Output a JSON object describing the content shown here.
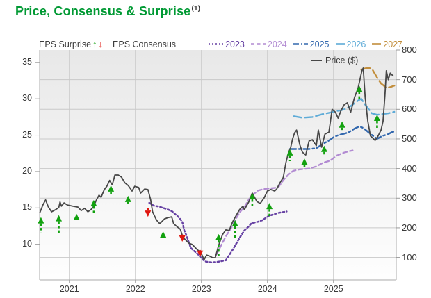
{
  "title": {
    "text": "Price, Consensus & Surprise",
    "superscript": "(1)"
  },
  "colors": {
    "title_green": "#009933",
    "text": "#3a3a3a",
    "up_arrow": "#12A10F",
    "down_arrow": "#E0160F",
    "grid": "#c9c9c9",
    "spine": "#ababab",
    "plot_bg_top": "#e8e8e8",
    "plot_bg_bottom": "#fefefe"
  },
  "legend": {
    "surprise_label": "EPS Surprise",
    "up_glyph": "↑",
    "down_glyph": "↓",
    "consensus_label": "EPS Consensus",
    "price_label": "Price ($)",
    "price_swatch_color": "#474747"
  },
  "chart_data": {
    "type": "line",
    "title": "Price, Consensus & Surprise",
    "x_axis": {
      "domain": [
        2020.55,
        2025.95
      ],
      "ticks": [
        "2021",
        "2022",
        "2023",
        "2024",
        "2025"
      ],
      "tick_values": [
        2021,
        2022,
        2023,
        2024,
        2025
      ]
    },
    "left_axis": {
      "name": "EPS Consensus scale",
      "domain": [
        5.1,
        36.7
      ],
      "ticks": [
        35,
        30,
        25,
        20,
        15,
        10
      ]
    },
    "right_axis": {
      "name": "Price ($) scale",
      "domain": [
        24,
        800
      ],
      "ticks": [
        800,
        700,
        600,
        500,
        400,
        300,
        200,
        100
      ]
    },
    "grid": true,
    "price_series": {
      "name": "Price ($)",
      "color": "#474747",
      "axis": "right",
      "points": [
        [
          2020.55,
          249
        ],
        [
          2020.6,
          277
        ],
        [
          2020.64,
          294
        ],
        [
          2020.68,
          271
        ],
        [
          2020.73,
          254
        ],
        [
          2020.79,
          261
        ],
        [
          2020.84,
          268
        ],
        [
          2020.86,
          287
        ],
        [
          2020.88,
          273
        ],
        [
          2020.92,
          284
        ],
        [
          2020.97,
          277
        ],
        [
          2021.05,
          273
        ],
        [
          2021.13,
          270
        ],
        [
          2021.18,
          258
        ],
        [
          2021.23,
          266
        ],
        [
          2021.28,
          254
        ],
        [
          2021.33,
          262
        ],
        [
          2021.37,
          273
        ],
        [
          2021.41,
          294
        ],
        [
          2021.45,
          310
        ],
        [
          2021.48,
          303
        ],
        [
          2021.53,
          329
        ],
        [
          2021.57,
          341
        ],
        [
          2021.61,
          360
        ],
        [
          2021.65,
          345
        ],
        [
          2021.69,
          378
        ],
        [
          2021.74,
          378
        ],
        [
          2021.79,
          371
        ],
        [
          2021.84,
          352
        ],
        [
          2021.89,
          343
        ],
        [
          2021.95,
          324
        ],
        [
          2021.99,
          340
        ],
        [
          2022.05,
          336
        ],
        [
          2022.08,
          317
        ],
        [
          2022.14,
          331
        ],
        [
          2022.19,
          329
        ],
        [
          2022.23,
          296
        ],
        [
          2022.26,
          254
        ],
        [
          2022.32,
          226
        ],
        [
          2022.37,
          214
        ],
        [
          2022.44,
          230
        ],
        [
          2022.49,
          234
        ],
        [
          2022.55,
          237
        ],
        [
          2022.58,
          214
        ],
        [
          2022.63,
          204
        ],
        [
          2022.68,
          195
        ],
        [
          2022.72,
          168
        ],
        [
          2022.77,
          157
        ],
        [
          2022.81,
          148
        ],
        [
          2022.86,
          144
        ],
        [
          2022.92,
          130
        ],
        [
          2022.97,
          120
        ],
        [
          2023.01,
          108
        ],
        [
          2023.04,
          92
        ],
        [
          2023.08,
          108
        ],
        [
          2023.13,
          104
        ],
        [
          2023.17,
          99
        ],
        [
          2023.21,
          99
        ],
        [
          2023.26,
          140
        ],
        [
          2023.32,
          177
        ],
        [
          2023.37,
          193
        ],
        [
          2023.42,
          191
        ],
        [
          2023.47,
          219
        ],
        [
          2023.53,
          243
        ],
        [
          2023.58,
          262
        ],
        [
          2023.63,
          273
        ],
        [
          2023.65,
          261
        ],
        [
          2023.72,
          289
        ],
        [
          2023.77,
          317
        ],
        [
          2023.84,
          289
        ],
        [
          2023.89,
          282
        ],
        [
          2023.95,
          301
        ],
        [
          2024.0,
          324
        ],
        [
          2024.05,
          329
        ],
        [
          2024.11,
          324
        ],
        [
          2024.14,
          331
        ],
        [
          2024.19,
          352
        ],
        [
          2024.24,
          370
        ],
        [
          2024.28,
          420
        ],
        [
          2024.32,
          455
        ],
        [
          2024.35,
          470
        ],
        [
          2024.38,
          500
        ],
        [
          2024.41,
          520
        ],
        [
          2024.44,
          530
        ],
        [
          2024.49,
          480
        ],
        [
          2024.53,
          455
        ],
        [
          2024.58,
          446
        ],
        [
          2024.63,
          493
        ],
        [
          2024.68,
          497
        ],
        [
          2024.74,
          477
        ],
        [
          2024.77,
          530
        ],
        [
          2024.82,
          472
        ],
        [
          2024.87,
          516
        ],
        [
          2024.93,
          523
        ],
        [
          2024.98,
          600
        ],
        [
          2025.03,
          590
        ],
        [
          2025.07,
          570
        ],
        [
          2025.11,
          594
        ],
        [
          2025.16,
          615
        ],
        [
          2025.21,
          622
        ],
        [
          2025.26,
          590
        ],
        [
          2025.32,
          641
        ],
        [
          2025.37,
          670
        ],
        [
          2025.4,
          700
        ],
        [
          2025.43,
          730
        ],
        [
          2025.45,
          739
        ],
        [
          2025.48,
          640
        ],
        [
          2025.52,
          560
        ],
        [
          2025.56,
          510
        ],
        [
          2025.6,
          502
        ],
        [
          2025.63,
          495
        ],
        [
          2025.67,
          508
        ],
        [
          2025.72,
          530
        ],
        [
          2025.75,
          560
        ],
        [
          2025.78,
          650
        ],
        [
          2025.8,
          730
        ],
        [
          2025.83,
          700
        ],
        [
          2025.86,
          722
        ],
        [
          2025.91,
          711
        ]
      ]
    },
    "consensus_series": [
      {
        "name": "2023",
        "color": "#6641A3",
        "dash": "2.5 3.2",
        "legend_dash": "2 3",
        "width": 2.5,
        "axis": "left",
        "points": [
          [
            2022.21,
            15.7
          ],
          [
            2022.28,
            15.3
          ],
          [
            2022.35,
            15.2
          ],
          [
            2022.42,
            15.0
          ],
          [
            2022.49,
            14.8
          ],
          [
            2022.56,
            14.5
          ],
          [
            2022.62,
            14.0
          ],
          [
            2022.66,
            13.7
          ],
          [
            2022.71,
            13.1
          ],
          [
            2022.74,
            11.9
          ],
          [
            2022.77,
            11.3
          ],
          [
            2022.84,
            9.5
          ],
          [
            2022.95,
            8.6
          ],
          [
            2023.02,
            7.9
          ],
          [
            2023.07,
            7.6
          ],
          [
            2023.16,
            7.5
          ],
          [
            2023.26,
            7.6
          ],
          [
            2023.37,
            7.8
          ],
          [
            2023.47,
            9.2
          ],
          [
            2023.58,
            10.9
          ],
          [
            2023.65,
            11.9
          ],
          [
            2023.71,
            12.4
          ],
          [
            2023.76,
            12.9
          ],
          [
            2023.86,
            13.1
          ],
          [
            2023.92,
            13.3
          ],
          [
            2024.02,
            13.9
          ],
          [
            2024.09,
            14.1
          ],
          [
            2024.16,
            14.3
          ],
          [
            2024.22,
            14.4
          ],
          [
            2024.29,
            14.5
          ]
        ]
      },
      {
        "name": "2024",
        "color": "#B28BD2",
        "dash": "6 4",
        "legend_dash": "5 3.5",
        "width": 2.3,
        "axis": "left",
        "points": [
          [
            2023.23,
            8.6
          ],
          [
            2023.29,
            9.7
          ],
          [
            2023.37,
            11.1
          ],
          [
            2023.44,
            12.1
          ],
          [
            2023.51,
            13.3
          ],
          [
            2023.58,
            14.4
          ],
          [
            2023.65,
            15.1
          ],
          [
            2023.72,
            16.2
          ],
          [
            2023.79,
            16.9
          ],
          [
            2023.86,
            17.4
          ],
          [
            2023.95,
            17.6
          ],
          [
            2024.05,
            17.7
          ],
          [
            2024.16,
            17.8
          ],
          [
            2024.24,
            18.8
          ],
          [
            2024.32,
            19.6
          ],
          [
            2024.39,
            20.1
          ],
          [
            2024.49,
            20.3
          ],
          [
            2024.63,
            20.4
          ],
          [
            2024.74,
            20.7
          ],
          [
            2024.84,
            21.2
          ],
          [
            2024.95,
            21.5
          ],
          [
            2025.05,
            22.2
          ],
          [
            2025.16,
            22.6
          ],
          [
            2025.24,
            22.8
          ],
          [
            2025.29,
            22.9
          ]
        ]
      },
      {
        "name": "2025",
        "color": "#3368AE",
        "dash": "9 4 2.5 4",
        "legend_dash": "8 3 2 3",
        "width": 2.4,
        "axis": "left",
        "points": [
          [
            2024.34,
            23.1
          ],
          [
            2024.47,
            23.1
          ],
          [
            2024.63,
            23.1
          ],
          [
            2024.74,
            23.2
          ],
          [
            2024.84,
            23.8
          ],
          [
            2024.92,
            24.2
          ],
          [
            2025.0,
            24.7
          ],
          [
            2025.07,
            25.0
          ],
          [
            2025.16,
            25.2
          ],
          [
            2025.23,
            25.4
          ],
          [
            2025.32,
            25.9
          ],
          [
            2025.39,
            26.2
          ],
          [
            2025.45,
            26.0
          ],
          [
            2025.53,
            25.4
          ],
          [
            2025.6,
            24.9
          ],
          [
            2025.66,
            24.5
          ],
          [
            2025.74,
            24.9
          ],
          [
            2025.82,
            25.1
          ],
          [
            2025.88,
            25.4
          ],
          [
            2025.92,
            25.5
          ]
        ]
      },
      {
        "name": "2026",
        "color": "#5EABD7",
        "dash": "11 5",
        "legend_dash": "",
        "width": 2.4,
        "axis": "left",
        "points": [
          [
            2024.4,
            27.6
          ],
          [
            2024.53,
            27.4
          ],
          [
            2024.68,
            27.5
          ],
          [
            2024.84,
            27.9
          ],
          [
            2024.95,
            28.1
          ],
          [
            2025.03,
            28.3
          ],
          [
            2025.11,
            28.4
          ],
          [
            2025.18,
            28.6
          ],
          [
            2025.26,
            29.0
          ],
          [
            2025.32,
            29.4
          ],
          [
            2025.38,
            29.8
          ],
          [
            2025.42,
            30.0
          ],
          [
            2025.47,
            29.3
          ],
          [
            2025.53,
            28.6
          ],
          [
            2025.58,
            28.0
          ],
          [
            2025.66,
            27.8
          ],
          [
            2025.74,
            27.9
          ],
          [
            2025.83,
            28.0
          ],
          [
            2025.92,
            28.2
          ]
        ]
      },
      {
        "name": "2027",
        "color": "#C28E3C",
        "dash": "13 5",
        "legend_dash": "",
        "width": 2.4,
        "axis": "left",
        "points": [
          [
            2025.42,
            34.0
          ],
          [
            2025.49,
            34.2
          ],
          [
            2025.55,
            34.2
          ],
          [
            2025.59,
            34.0
          ],
          [
            2025.66,
            32.9
          ],
          [
            2025.72,
            32.1
          ],
          [
            2025.75,
            31.9
          ],
          [
            2025.8,
            31.5
          ],
          [
            2025.86,
            31.6
          ],
          [
            2025.92,
            31.8
          ]
        ]
      }
    ],
    "surprise_markers": {
      "name": "EPS Surprise",
      "up_color": "#12A10F",
      "down_color": "#E0160F",
      "points": [
        {
          "x": 2020.57,
          "dir": "up",
          "tip": 236,
          "tail": 184
        },
        {
          "x": 2020.84,
          "dir": "up",
          "tip": 243,
          "tail": 177
        },
        {
          "x": 2021.11,
          "dir": "up",
          "tip": 247,
          "tail": 228
        },
        {
          "x": 2021.37,
          "dir": "up",
          "tip": 294,
          "tail": 247
        },
        {
          "x": 2021.63,
          "dir": "up",
          "tip": 343,
          "tail": 312
        },
        {
          "x": 2021.89,
          "dir": "up",
          "tip": 308,
          "tail": 282
        },
        {
          "x": 2022.19,
          "dir": "down",
          "tip": 237,
          "tail": 266
        },
        {
          "x": 2022.42,
          "dir": "up",
          "tip": 188,
          "tail": 165
        },
        {
          "x": 2022.71,
          "dir": "down",
          "tip": 153,
          "tail": 177
        },
        {
          "x": 2022.98,
          "dir": "down",
          "tip": 102,
          "tail": 125
        },
        {
          "x": 2023.26,
          "dir": "up",
          "tip": 179,
          "tail": 97
        },
        {
          "x": 2023.51,
          "dir": "up",
          "tip": 226,
          "tail": 167
        },
        {
          "x": 2023.77,
          "dir": "up",
          "tip": 317,
          "tail": 266
        },
        {
          "x": 2024.03,
          "dir": "up",
          "tip": 284,
          "tail": 237
        },
        {
          "x": 2024.34,
          "dir": "up",
          "tip": 465,
          "tail": 425
        },
        {
          "x": 2024.56,
          "dir": "up",
          "tip": 434,
          "tail": 399
        },
        {
          "x": 2024.86,
          "dir": "up",
          "tip": 477,
          "tail": 446
        },
        {
          "x": 2025.13,
          "dir": "up",
          "tip": 559,
          "tail": 530
        },
        {
          "x": 2025.39,
          "dir": "up",
          "tip": 680,
          "tail": 629
        },
        {
          "x": 2025.66,
          "dir": "up",
          "tip": 582,
          "tail": 535
        }
      ]
    }
  }
}
